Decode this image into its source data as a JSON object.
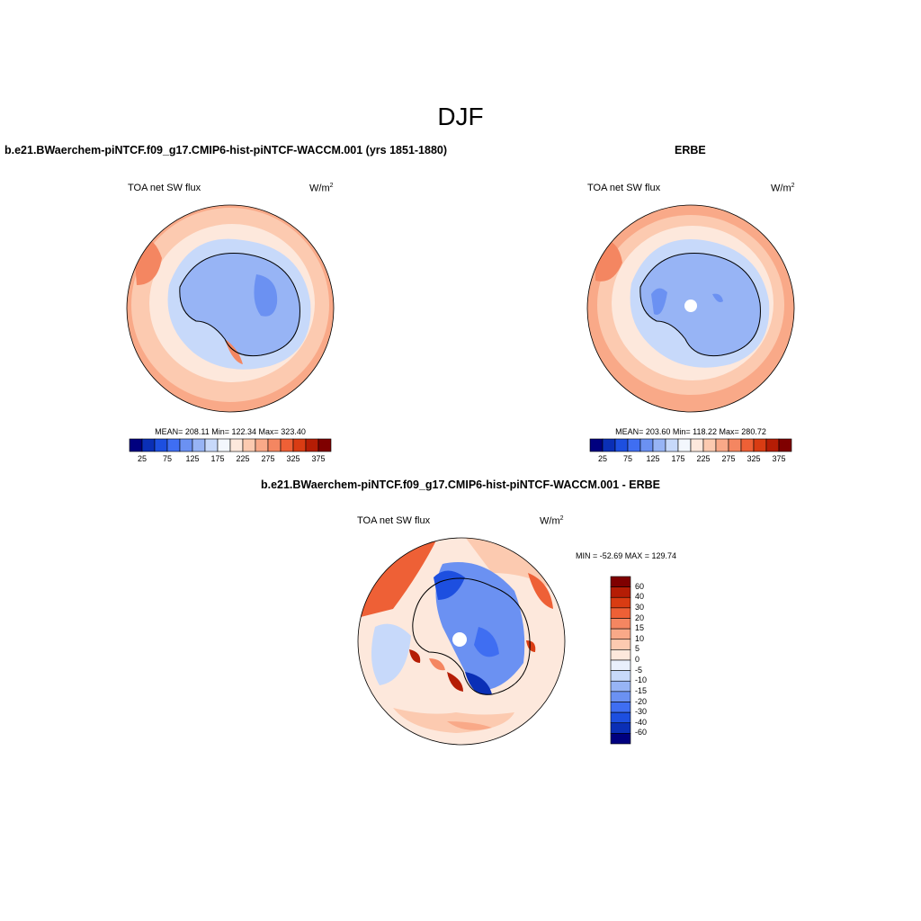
{
  "figure_title": "DJF",
  "colors": {
    "abs_levels": [
      "#00007f",
      "#0a2fb6",
      "#1d4fe0",
      "#3f6ef2",
      "#6b91f2",
      "#97b4f5",
      "#c7d9fa",
      "#f3f7fd",
      "#fde8dc",
      "#fccab0",
      "#f9a988",
      "#f48661",
      "#ee6036",
      "#d93c13",
      "#b51d05",
      "#7f0000"
    ],
    "diff_levels": [
      "#00007f",
      "#0a2fb6",
      "#1d4fe0",
      "#3f6ef2",
      "#6b91f2",
      "#97b4f5",
      "#c7d9fa",
      "#e9f0fc",
      "#fde8dc",
      "#fccab0",
      "#f9a988",
      "#f48661",
      "#ee6036",
      "#d93c13",
      "#b51d05",
      "#7f0000"
    ]
  },
  "panels": {
    "model": {
      "title": "b.e21.BWaerchem-piNTCF.f09_g17.CMIP6-hist-piNTCF-WACCM.001 (yrs 1851-1880)",
      "variable": "TOA net SW flux",
      "units_base": "W/m",
      "units_exp": "2",
      "stats": "MEAN= 208.11   Min= 122.34   Max= 323.40",
      "colorbar_labels": [
        "25",
        "75",
        "125",
        "175",
        "225",
        "275",
        "325",
        "375"
      ]
    },
    "obs": {
      "title": "ERBE",
      "variable": "TOA net SW flux",
      "units_base": "W/m",
      "units_exp": "2",
      "stats": "MEAN= 203.60   Min= 118.22   Max= 280.72",
      "colorbar_labels": [
        "25",
        "75",
        "125",
        "175",
        "225",
        "275",
        "325",
        "375"
      ]
    },
    "diff": {
      "title": "b.e21.BWaerchem-piNTCF.f09_g17.CMIP6-hist-piNTCF-WACCM.001 - ERBE",
      "variable": "TOA net SW flux",
      "units_base": "W/m",
      "units_exp": "2",
      "stats": "MIN = -52.69 MAX = 129.74",
      "colorbar_labels": [
        "60",
        "40",
        "30",
        "20",
        "15",
        "10",
        "5",
        "0",
        "-5",
        "-10",
        "-15",
        "-20",
        "-30",
        "-40",
        "-60"
      ]
    }
  }
}
